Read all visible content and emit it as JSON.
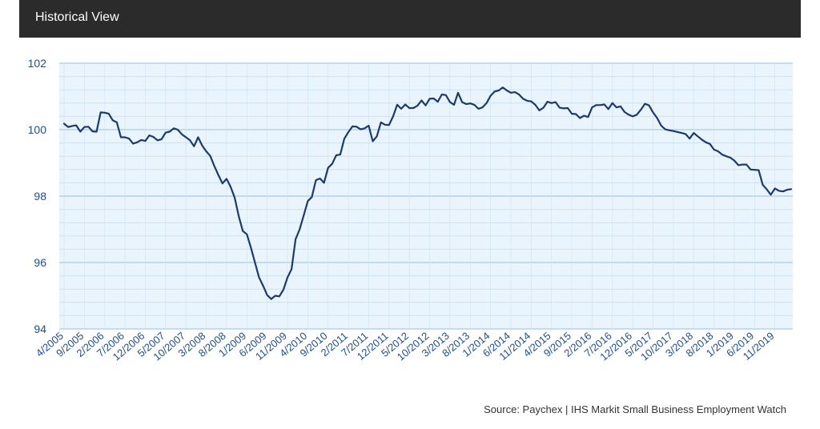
{
  "header": {
    "title": "Historical View"
  },
  "source": "Source: Paychex | IHS Markit Small Business Employment Watch",
  "colors": {
    "line": "#1c3a6b",
    "plot_bg": "#eaf4fc",
    "grid_major": "#a9cbe6",
    "grid_minor": "#cde2f2",
    "tick_text": "#1f4e8c"
  },
  "chart_data": {
    "type": "line",
    "title": "",
    "xlabel": "",
    "ylabel": "",
    "ylim": [
      94,
      102
    ],
    "yticks": [
      94,
      96,
      98,
      100,
      102
    ],
    "grid": true,
    "xtick_labels": [
      "4/2005",
      "9/2005",
      "2/2006",
      "7/2006",
      "12/2006",
      "5/2007",
      "10/2007",
      "3/2008",
      "8/2008",
      "1/2009",
      "6/2009",
      "11/2009",
      "4/2010",
      "9/2010",
      "2/2011",
      "7/2011",
      "12/2011",
      "5/2012",
      "10/2012",
      "3/2013",
      "8/2013",
      "1/2014",
      "6/2014",
      "11/2014",
      "4/2015",
      "9/2015",
      "2/2016",
      "7/2016",
      "12/2016",
      "5/2017",
      "10/2017",
      "3/2018",
      "8/2018",
      "1/2019",
      "6/2019",
      "11/2019"
    ],
    "series": [
      {
        "values": [
          100.18,
          100.08,
          100.11,
          100.13,
          99.94,
          100.08,
          100.09,
          99.95,
          99.94,
          100.52,
          100.51,
          100.48,
          100.28,
          100.22,
          99.77,
          99.77,
          99.73,
          99.58,
          99.62,
          99.69,
          99.66,
          99.83,
          99.78,
          99.68,
          99.71,
          99.91,
          99.94,
          100.04,
          100.0,
          99.86,
          99.77,
          99.68,
          99.5,
          99.77,
          99.52,
          99.35,
          99.21,
          98.9,
          98.63,
          98.38,
          98.52,
          98.28,
          97.95,
          97.4,
          96.95,
          96.85,
          96.45,
          96.0,
          95.55,
          95.3,
          95.02,
          94.9,
          95.0,
          94.98,
          95.18,
          95.55,
          95.8,
          96.7,
          97.0,
          97.42,
          97.85,
          97.97,
          98.48,
          98.53,
          98.4,
          98.85,
          98.97,
          99.23,
          99.25,
          99.73,
          99.93,
          100.1,
          100.09,
          100.01,
          100.04,
          100.12,
          99.65,
          99.8,
          100.22,
          100.15,
          100.14,
          100.4,
          100.75,
          100.63,
          100.76,
          100.65,
          100.65,
          100.72,
          100.88,
          100.73,
          100.93,
          100.94,
          100.84,
          101.06,
          101.04,
          100.83,
          100.75,
          101.11,
          100.83,
          100.77,
          100.79,
          100.75,
          100.63,
          100.67,
          100.8,
          101.02,
          101.15,
          101.18,
          101.27,
          101.18,
          101.11,
          101.13,
          101.06,
          100.93,
          100.87,
          100.85,
          100.75,
          100.58,
          100.66,
          100.84,
          100.8,
          100.83,
          100.66,
          100.64,
          100.65,
          100.48,
          100.47,
          100.35,
          100.42,
          100.38,
          100.67,
          100.74,
          100.74,
          100.76,
          100.62,
          100.8,
          100.67,
          100.7,
          100.53,
          100.45,
          100.4,
          100.45,
          100.6,
          100.78,
          100.73,
          100.52,
          100.35,
          100.12,
          100.01,
          99.98,
          99.96,
          99.93,
          99.9,
          99.87,
          99.73,
          99.9,
          99.8,
          99.7,
          99.62,
          99.57,
          99.4,
          99.35,
          99.25,
          99.2,
          99.16,
          99.07,
          98.93,
          98.95,
          98.95,
          98.8,
          98.79,
          98.78,
          98.34,
          98.2,
          98.04,
          98.23,
          98.16,
          98.14,
          98.19,
          98.21
        ]
      }
    ]
  }
}
